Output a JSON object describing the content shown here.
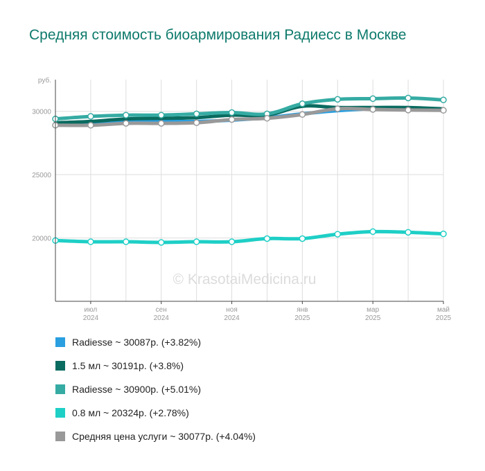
{
  "chart_data": {
    "type": "line",
    "title": "Средняя стоимость биоармирования Радиесс в Москве",
    "y_unit_label": "руб.",
    "watermark": "© KrasotaiMedicina.ru",
    "ylim": [
      15000,
      32500
    ],
    "yticks": [
      20000,
      25000,
      30000
    ],
    "grid": true,
    "legend_position": "bottom",
    "x_ticks": [
      {
        "index": 1,
        "month": "июл",
        "year": "2024"
      },
      {
        "index": 3,
        "month": "сен",
        "year": "2024"
      },
      {
        "index": 5,
        "month": "ноя",
        "year": "2024"
      },
      {
        "index": 7,
        "month": "янв",
        "year": "2025"
      },
      {
        "index": 9,
        "month": "мар",
        "year": "2025"
      },
      {
        "index": 11,
        "month": "май",
        "year": "2025"
      }
    ],
    "x_count": 12,
    "series": [
      {
        "name": "Radiesse ~ 30087р. (+3.82%)",
        "color": "#2a9fe0",
        "values": [
          28950,
          29000,
          29200,
          29200,
          29200,
          29300,
          29500,
          29800,
          30050,
          30200,
          30200,
          30087
        ],
        "markers": false
      },
      {
        "name": "1.5 мл ~ 30191р. (+3.8%)",
        "color": "#0a6b60",
        "values": [
          29100,
          29200,
          29400,
          29450,
          29500,
          29700,
          29700,
          30400,
          30300,
          30300,
          30300,
          30191
        ],
        "markers": false
      },
      {
        "name": "Radiesse ~ 30900р. (+5.01%)",
        "color": "#35aba3",
        "values": [
          29400,
          29600,
          29700,
          29700,
          29800,
          29900,
          29800,
          30600,
          30950,
          31000,
          31050,
          30900
        ],
        "markers": true
      },
      {
        "name": "0.8 мл ~ 20324р. (+2.78%)",
        "color": "#1ecfc6",
        "values": [
          19800,
          19700,
          19700,
          19650,
          19700,
          19700,
          19950,
          19950,
          20300,
          20500,
          20450,
          20324
        ],
        "markers": true
      },
      {
        "name": "Средняя цена услуги ~ 30077р. (+4.04%)",
        "color": "#999999",
        "values": [
          28900,
          28900,
          29050,
          29050,
          29100,
          29350,
          29450,
          29750,
          30200,
          30150,
          30100,
          30077
        ],
        "markers": true
      }
    ]
  }
}
